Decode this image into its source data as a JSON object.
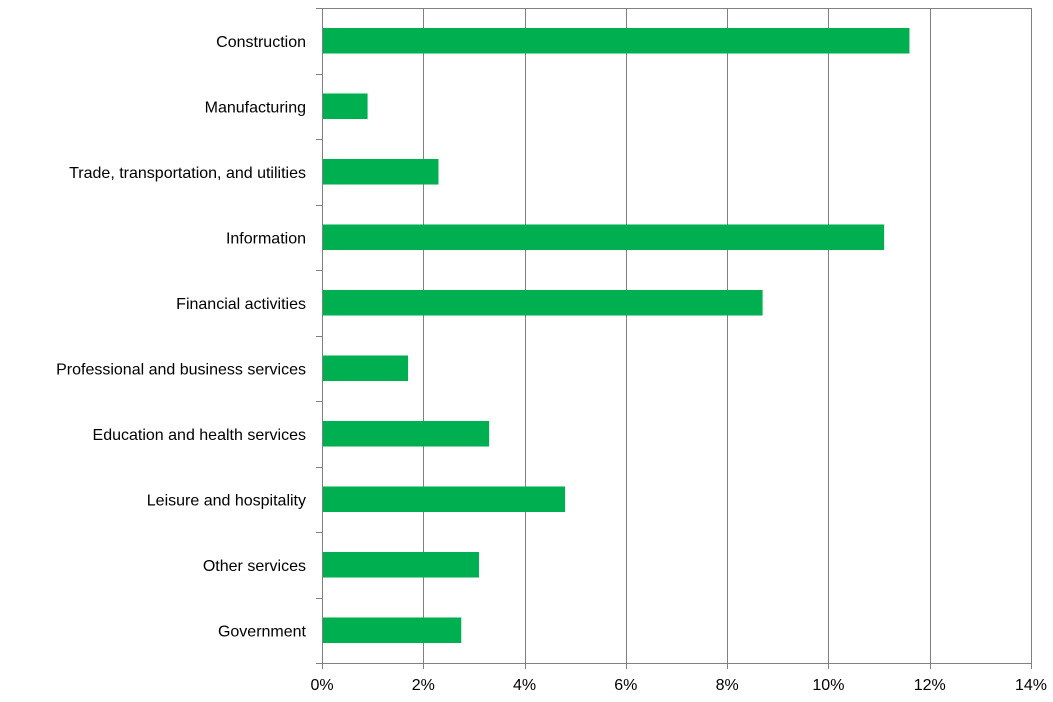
{
  "chart_data": {
    "type": "bar",
    "orientation": "horizontal",
    "title": "",
    "xlabel": "",
    "ylabel": "",
    "categories": [
      "Construction",
      "Manufacturing",
      "Trade, transportation, and utilities",
      "Information",
      "Financial activities",
      "Professional and business services",
      "Education and health services",
      "Leisure and hospitality",
      "Other services",
      "Government"
    ],
    "values": [
      11.6,
      0.9,
      2.3,
      11.1,
      8.7,
      1.7,
      3.3,
      4.8,
      3.1,
      2.75
    ],
    "xlim": [
      0,
      14
    ],
    "xticks": [
      0,
      2,
      4,
      6,
      8,
      10,
      12,
      14
    ],
    "xtick_labels": [
      "0%",
      "2%",
      "4%",
      "6%",
      "8%",
      "10%",
      "12%",
      "14%"
    ],
    "grid": "vertical",
    "legend": "none",
    "colors": {
      "bar": "#00B050",
      "grid": "#808080",
      "axis": "#808080"
    }
  }
}
